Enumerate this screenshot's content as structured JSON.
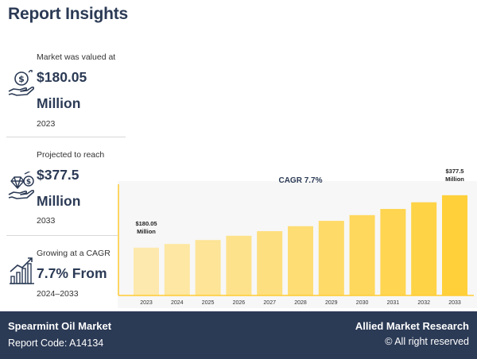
{
  "page": {
    "title": "Report Insights"
  },
  "stats": [
    {
      "label": "Market was valued at",
      "value_line1": "$180.05",
      "value_line2": "Million",
      "year": "2023",
      "icon": "hand-money-bag-icon"
    },
    {
      "label": "Projected to reach",
      "value_line1": "$377.5",
      "value_line2": "Million",
      "year": "2033",
      "icon": "hand-diamond-coin-icon"
    },
    {
      "label": "Growing at a CAGR",
      "value_line1": "7.7% From",
      "year": "2024–2033",
      "icon": "growth-bar-chart-icon"
    }
  ],
  "footer": {
    "market_name": "Spearmint Oil Market",
    "report_code": "Report Code: A14134",
    "brand": "Allied Market Research",
    "copyright": "© All right reserved"
  },
  "colors": {
    "accent": "#ffcc33",
    "navy": "#2b3a55",
    "bar_light": "#fde9ad",
    "bar_dark": "#ffd03a"
  },
  "chart_data": {
    "type": "bar",
    "title": "CAGR 7.7%",
    "categories": [
      "2023",
      "2024",
      "2025",
      "2026",
      "2027",
      "2028",
      "2029",
      "2030",
      "2031",
      "2032",
      "2033"
    ],
    "values": [
      180.05,
      193.9,
      208.8,
      224.9,
      242.2,
      260.9,
      281.0,
      302.6,
      325.9,
      351.0,
      377.5
    ],
    "value_labels": [
      {
        "index": 0,
        "line1": "$180.05",
        "line2": "Million"
      },
      {
        "index": 10,
        "line1": "$377.5",
        "line2": "Million"
      }
    ],
    "xlabel": "",
    "ylabel": "",
    "ylim": [
      0,
      400
    ],
    "grid": false,
    "legend": "none"
  }
}
